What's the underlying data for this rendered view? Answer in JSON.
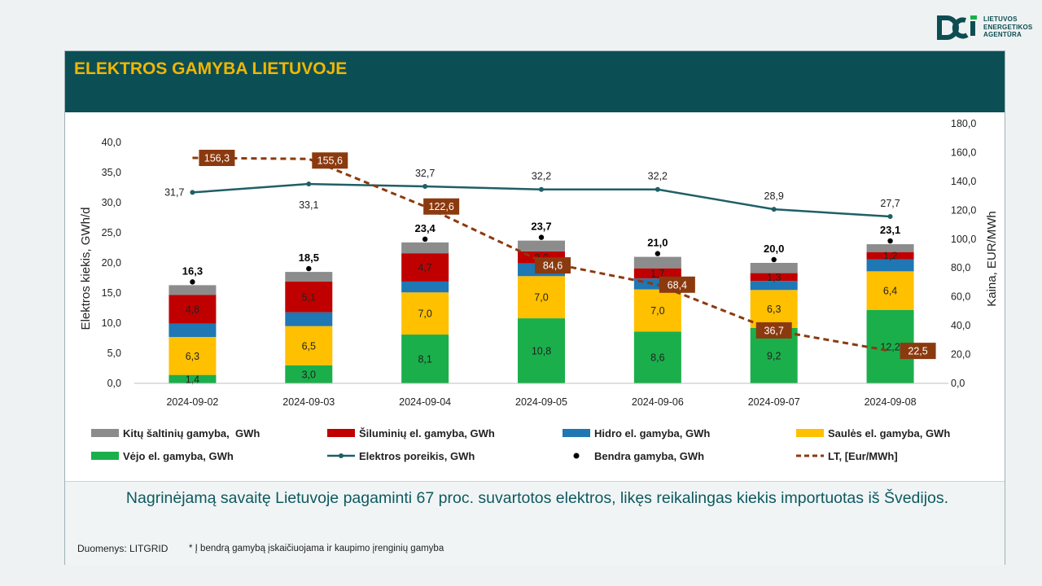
{
  "logo": {
    "line1": "LIETUVOS",
    "line2": "ENERGETIKOS",
    "line3": "AGENTŪRA"
  },
  "header": {
    "title": "ELEKTROS GAMYBA LIETUVOJE"
  },
  "colors": {
    "header_bg": "#0b4f55",
    "title": "#f2b600",
    "other": "#8c8c8c",
    "thermal": "#c00000",
    "hydro": "#1f77b4",
    "solar": "#ffc000",
    "wind": "#1aaf4b",
    "demand": "#1f5f66",
    "price": "#8b3a0f"
  },
  "chart_data": {
    "type": "bar",
    "stacked": true,
    "categories": [
      "2024-09-02",
      "2024-09-03",
      "2024-09-04",
      "2024-09-05",
      "2024-09-06",
      "2024-09-07",
      "2024-09-08"
    ],
    "series": [
      {
        "name": "Vėjo el. gamyba, GWh",
        "key": "wind",
        "values": [
          1.4,
          3.0,
          8.1,
          10.8,
          8.6,
          9.2,
          12.2
        ],
        "labels": [
          "1,4",
          "3,0",
          "8,1",
          "10,8",
          "8,6",
          "9,2",
          "12,2"
        ]
      },
      {
        "name": "Saulės el. gamyba, GWh",
        "key": "solar",
        "values": [
          6.3,
          6.5,
          7.0,
          7.0,
          7.0,
          6.3,
          6.4
        ],
        "labels": [
          "6,3",
          "6,5",
          "7,0",
          "7,0",
          "7,0",
          "6,3",
          "6,4"
        ]
      },
      {
        "name": "Hidro el. gamyba, GWh",
        "key": "hydro",
        "values": [
          2.2,
          2.3,
          1.8,
          2.1,
          1.8,
          1.5,
          2.0
        ],
        "labels": [
          "",
          "",
          "",
          "",
          "",
          "",
          ""
        ]
      },
      {
        "name": "Šiluminių el. gamyba, GWh",
        "key": "thermal",
        "values": [
          4.8,
          5.1,
          4.7,
          2.0,
          1.7,
          1.3,
          1.2
        ],
        "labels": [
          "4,8",
          "5,1",
          "4,7",
          "2,0",
          "1,7",
          "1,3",
          "1,2"
        ]
      },
      {
        "name": "Kitų šaltinių gamyba,  GWh",
        "key": "other",
        "values": [
          1.6,
          1.6,
          1.8,
          1.8,
          1.9,
          1.7,
          1.3
        ],
        "labels": [
          "",
          "",
          "",
          "",
          "",
          "",
          ""
        ]
      }
    ],
    "total": {
      "name": "Bendra gamyba, GWh",
      "values": [
        16.3,
        18.5,
        23.4,
        23.7,
        21.0,
        20.0,
        23.1
      ],
      "labels": [
        "16,3",
        "18,5",
        "23,4",
        "23,7",
        "21,0",
        "20,0",
        "23,1"
      ]
    },
    "demand": {
      "name": "Elektros poreikis, GWh",
      "values": [
        31.7,
        33.1,
        32.7,
        32.2,
        32.2,
        28.9,
        27.7
      ],
      "labels": [
        "31,7",
        "33,1",
        "32,7",
        "32,2",
        "32,2",
        "28,9",
        "27,7"
      ]
    },
    "price": {
      "name": "LT, [Eur/MWh]",
      "values": [
        156.3,
        155.6,
        122.6,
        84.6,
        68.4,
        36.7,
        22.5
      ],
      "labels": [
        "156,3",
        "155,6",
        "122,6",
        "84,6",
        "68,4",
        "36,7",
        "22,5"
      ]
    },
    "ylim": [
      0,
      40
    ],
    "yticks": [
      "0,0",
      "5,0",
      "10,0",
      "15,0",
      "20,0",
      "25,0",
      "30,0",
      "35,0",
      "40,0"
    ],
    "y2lim": [
      0,
      180
    ],
    "y2ticks": [
      "0,0",
      "20,0",
      "40,0",
      "60,0",
      "80,0",
      "100,0",
      "120,0",
      "140,0",
      "160,0",
      "180,0"
    ],
    "ylabel": "Elektros kiekis, GWh/d",
    "y2label": "Kaina, EUR/MWh"
  },
  "footer": {
    "summary": "Nagrinėjamą savaitę Lietuvoje pagaminti 67 proc. suvartotos elektros, likęs reikalingas kiekis importuotas iš Švedijos.",
    "source": "Duomenys: LITGRID",
    "note": "* Į bendrą gamybą įskaičiuojama ir kaupimo įrenginių gamyba"
  }
}
